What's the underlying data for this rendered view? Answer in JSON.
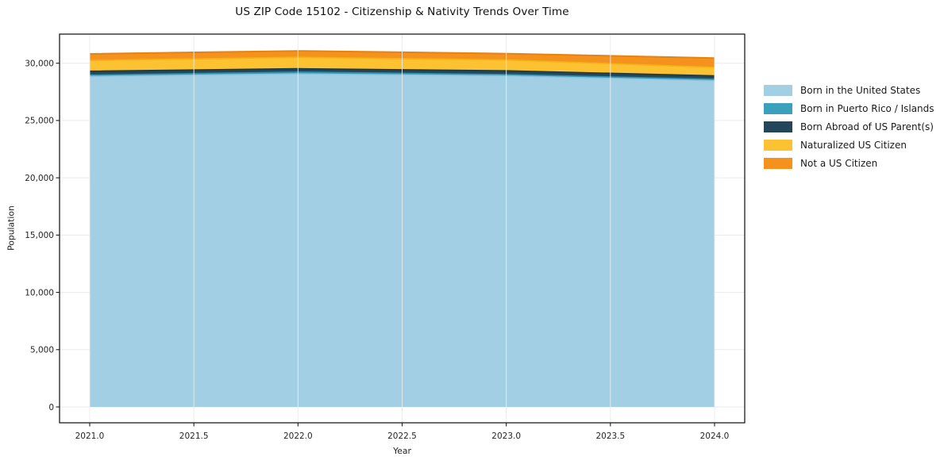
{
  "chart_data": {
    "type": "area",
    "stacked": true,
    "title": "US ZIP Code 15102 - Citizenship & Nativity Trends Over Time",
    "xlabel": "Year",
    "ylabel": "Population",
    "x": [
      2021,
      2022,
      2023,
      2024
    ],
    "series": [
      {
        "name": "Born in the United States",
        "color": "#a3cfe5",
        "edge_color": "#8fc2dd",
        "values": [
          28855,
          29065,
          28900,
          28480
        ]
      },
      {
        "name": "Born in Puerto Rico / Islands",
        "color": "#3ba0bc",
        "edge_color": "#2e92ad",
        "values": [
          110,
          160,
          120,
          120
        ]
      },
      {
        "name": "Born Abroad of US Parent(s)",
        "color": "#24465a",
        "edge_color": "#1c3948",
        "values": [
          345,
          300,
          325,
          300
        ]
      },
      {
        "name": "Naturalized US Citizen",
        "color": "#fcc231",
        "edge_color": "#f3b215",
        "values": [
          930,
          995,
          940,
          740
        ]
      },
      {
        "name": "Not a US Citizen",
        "color": "#f5921e",
        "edge_color": "#e8820f",
        "values": [
          575,
          555,
          555,
          810
        ]
      }
    ],
    "totals": [
      30815,
      31075,
      30840,
      30450
    ],
    "xlim": [
      2020.85,
      2024.15
    ],
    "ylim": [
      -1550,
      32620
    ],
    "xticks": [
      2021.0,
      2021.5,
      2022.0,
      2022.5,
      2023.0,
      2023.5,
      2024.0
    ],
    "xtick_labels": [
      "2021.0",
      "2021.5",
      "2022.0",
      "2022.5",
      "2023.0",
      "2023.5",
      "2024.0"
    ],
    "yticks": [
      0,
      5000,
      10000,
      15000,
      20000,
      25000,
      30000
    ],
    "ytick_labels": [
      "0",
      "5,000",
      "10,000",
      "15,000",
      "20,000",
      "25,000",
      "30,000"
    ],
    "grid": true,
    "legend_position": "right of plot",
    "grid_color": "#eaeaea",
    "frame_color": "#1c1c1c",
    "tick_label_color": "#262626"
  }
}
